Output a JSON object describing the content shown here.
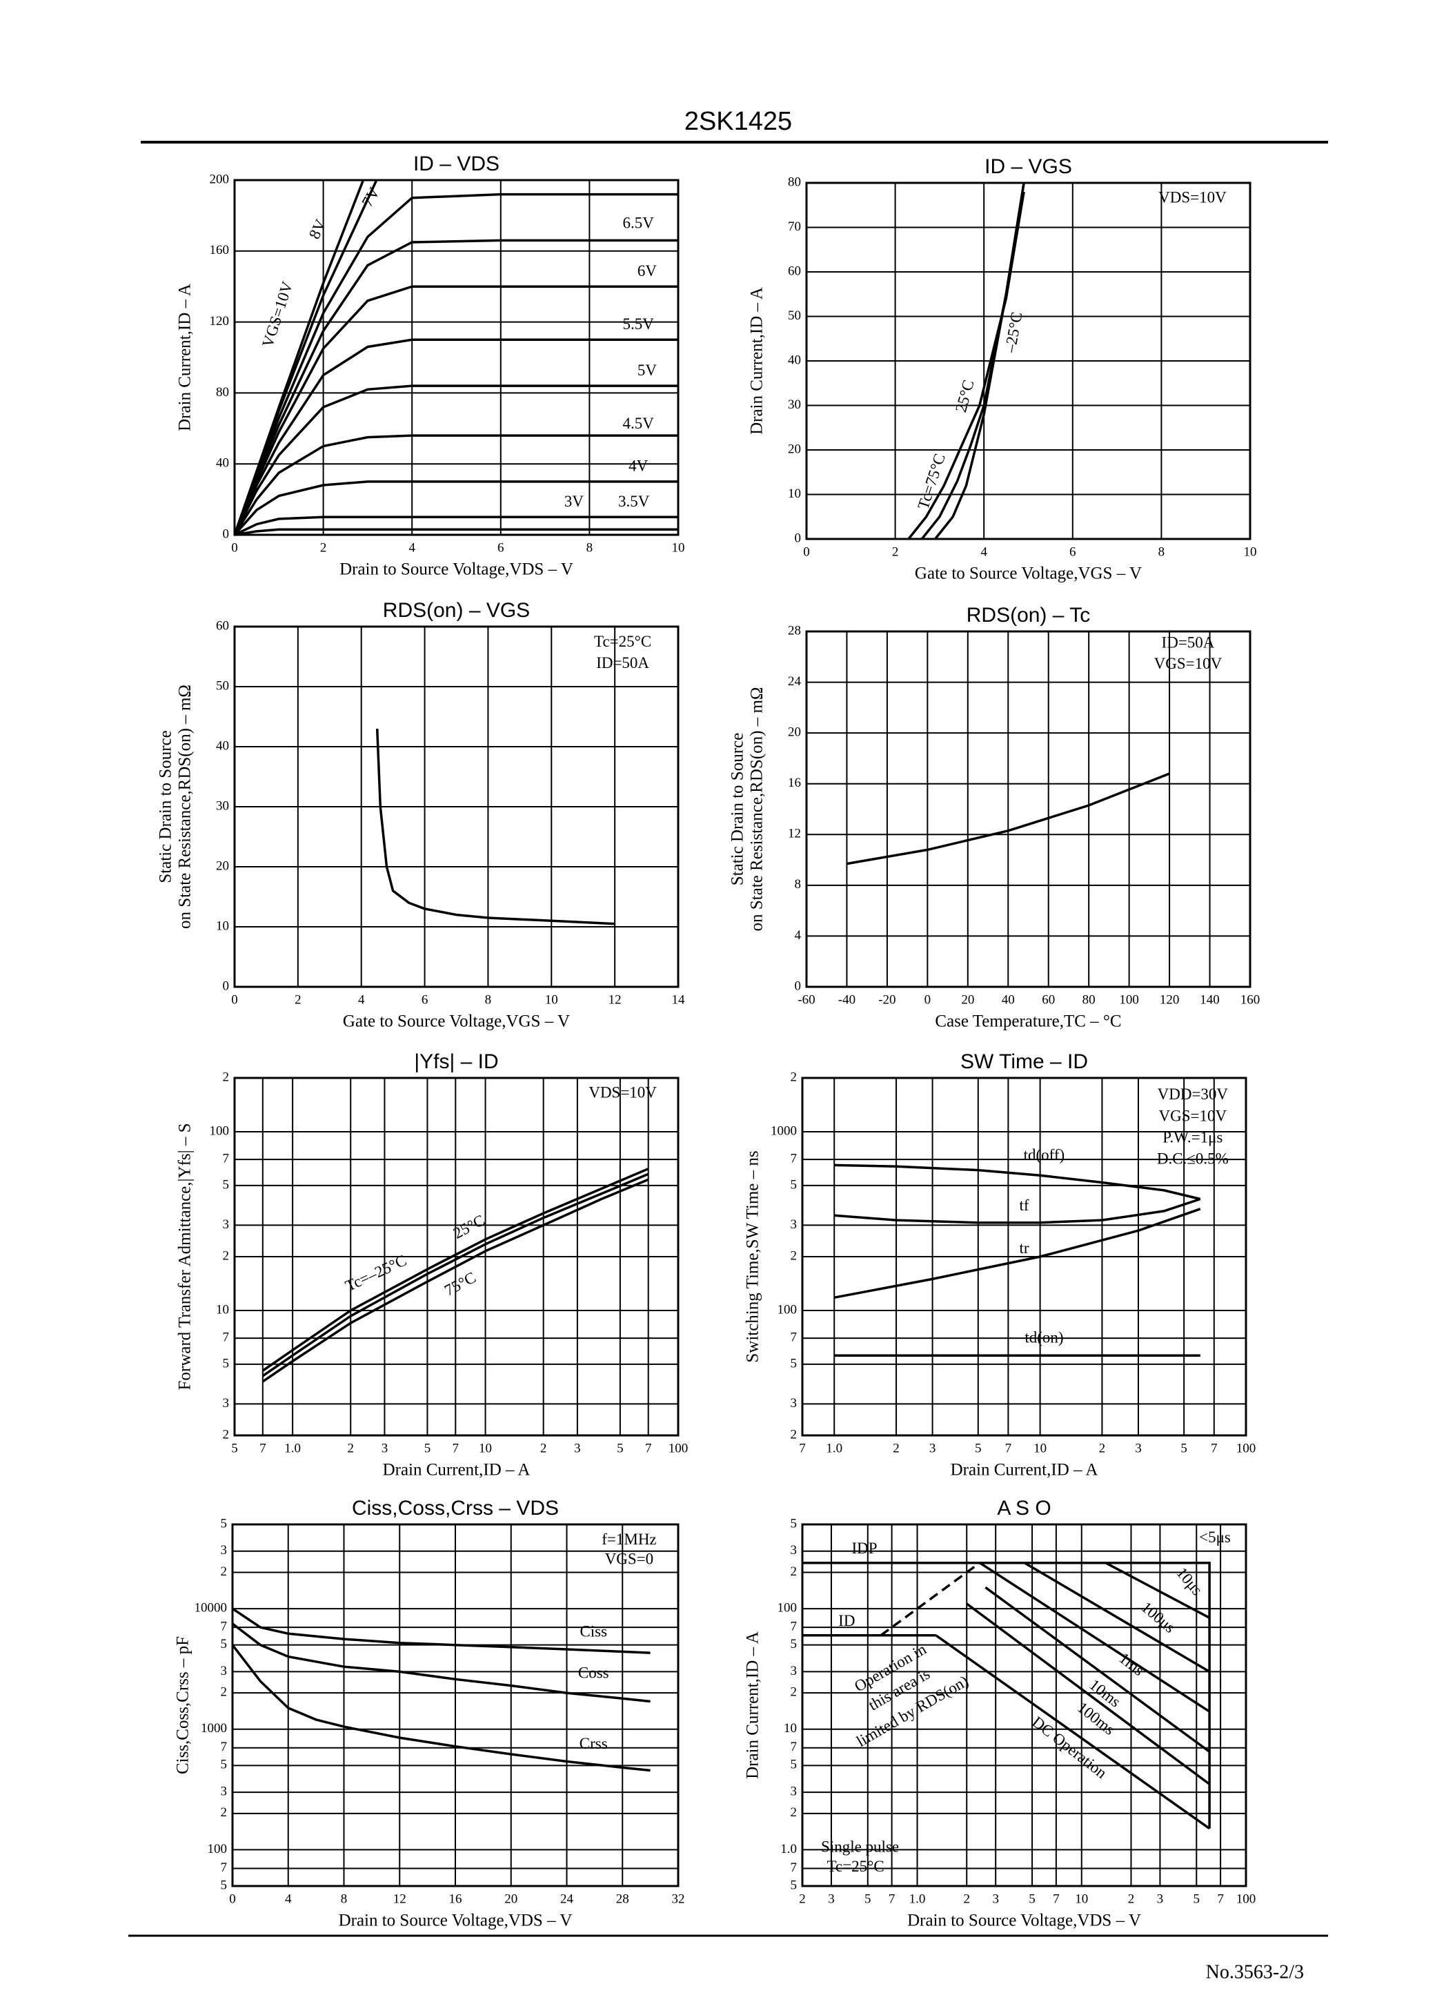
{
  "header": {
    "title": "2SK1425"
  },
  "footer": {
    "page": "No.3563-2/3"
  },
  "chart_data": [
    {
      "type": "line",
      "title": "ID – VDS",
      "xlabel": "Drain to Source Voltage,VDS – V",
      "ylabel": "Drain Current,ID – A",
      "xlim": [
        0,
        10
      ],
      "xticks": [
        0,
        2,
        4,
        6,
        8,
        10
      ],
      "ylim": [
        0,
        200
      ],
      "yticks": [
        0,
        40,
        80,
        120,
        160,
        200
      ],
      "grid": true,
      "color": "#000000",
      "series": [
        {
          "name": "3V",
          "x": [
            0,
            0.5,
            1,
            2,
            3,
            4,
            6,
            10
          ],
          "values": [
            0,
            2,
            3,
            3,
            3,
            3,
            3,
            3
          ]
        },
        {
          "name": "3.5V",
          "x": [
            0,
            0.5,
            1,
            2,
            3,
            4,
            6,
            10
          ],
          "values": [
            0,
            6,
            9,
            10,
            10,
            10,
            10,
            10
          ]
        },
        {
          "name": "4V",
          "x": [
            0,
            0.5,
            1,
            2,
            3,
            4,
            6,
            10
          ],
          "values": [
            0,
            14,
            22,
            28,
            30,
            30,
            30,
            30
          ]
        },
        {
          "name": "4.5V",
          "x": [
            0,
            0.5,
            1,
            2,
            3,
            4,
            6,
            10
          ],
          "values": [
            0,
            20,
            35,
            50,
            55,
            56,
            56,
            56
          ]
        },
        {
          "name": "5V",
          "x": [
            0,
            0.5,
            1,
            2,
            3,
            4,
            6,
            10
          ],
          "values": [
            0,
            25,
            45,
            72,
            82,
            84,
            84,
            84
          ]
        },
        {
          "name": "5.5V",
          "x": [
            0,
            0.5,
            1,
            2,
            3,
            4,
            6,
            10
          ],
          "values": [
            0,
            28,
            52,
            90,
            106,
            110,
            110,
            110
          ]
        },
        {
          "name": "6V",
          "x": [
            0,
            0.5,
            1,
            2,
            3,
            4,
            6,
            10
          ],
          "values": [
            0,
            30,
            58,
            105,
            132,
            140,
            140,
            140
          ]
        },
        {
          "name": "6.5V",
          "x": [
            0,
            0.5,
            1,
            2,
            3,
            4,
            6,
            10
          ],
          "values": [
            0,
            32,
            62,
            115,
            152,
            165,
            166,
            166
          ]
        },
        {
          "name": "7V",
          "x": [
            0,
            0.5,
            1,
            2,
            3,
            4,
            6,
            10
          ],
          "values": [
            0,
            33,
            66,
            125,
            168,
            190,
            192,
            192
          ]
        },
        {
          "name": "8V",
          "x": [
            0,
            1,
            2,
            3.2
          ],
          "values": [
            0,
            70,
            135,
            200
          ]
        },
        {
          "name": "VGS=10V",
          "x": [
            0,
            1,
            2,
            2.9
          ],
          "values": [
            0,
            72,
            142,
            200
          ]
        }
      ]
    },
    {
      "type": "line",
      "title": "ID – VGS",
      "xlabel": "Gate to Source Voltage,VGS – V",
      "ylabel": "Drain Current,ID – A",
      "xlim": [
        0,
        10
      ],
      "xticks": [
        0,
        2,
        4,
        6,
        8,
        10
      ],
      "ylim": [
        0,
        80
      ],
      "yticks": [
        0,
        10,
        20,
        30,
        40,
        50,
        60,
        70,
        80
      ],
      "grid": true,
      "color": "#000000",
      "annotations": [
        "VDS=10V"
      ],
      "series": [
        {
          "name": "Tc=75°C",
          "x": [
            2.3,
            2.7,
            3.1,
            3.5,
            3.9,
            4.5,
            4.9
          ],
          "values": [
            0,
            5,
            12,
            21,
            30,
            54,
            78
          ]
        },
        {
          "name": "25°C",
          "x": [
            2.6,
            3.0,
            3.4,
            3.7,
            4.0,
            4.5,
            4.9
          ],
          "values": [
            0,
            5,
            13,
            21,
            30,
            55,
            80
          ]
        },
        {
          "name": "–25°C",
          "x": [
            2.9,
            3.3,
            3.6,
            3.8,
            4.0,
            4.5,
            4.9
          ],
          "values": [
            0,
            5,
            12,
            20,
            28,
            55,
            80
          ]
        }
      ]
    },
    {
      "type": "line",
      "title": "RDS(on) – VGS",
      "xlabel": "Gate to Source Voltage,VGS – V",
      "ylabel": [
        "Static Drain to Source",
        "on State Resistance,RDS(on) – mΩ"
      ],
      "xlim": [
        0,
        14
      ],
      "xticks": [
        0,
        2,
        4,
        6,
        8,
        10,
        12,
        14
      ],
      "ylim": [
        0,
        60
      ],
      "yticks": [
        0,
        10,
        20,
        30,
        40,
        50,
        60
      ],
      "grid": true,
      "color": "#000000",
      "annotations": [
        "Tc=25°C",
        "ID=50A"
      ],
      "series": [
        {
          "x": [
            4.5,
            4.6,
            4.8,
            5,
            5.5,
            6,
            7,
            8,
            10,
            12
          ],
          "values": [
            43,
            30,
            20,
            16,
            14,
            13,
            12,
            11.5,
            11,
            10.5
          ]
        }
      ]
    },
    {
      "type": "line",
      "title": "RDS(on) – Tc",
      "xlabel": "Case Temperature,TC – °C",
      "ylabel": [
        "Static Drain to Source",
        "on State Resistance,RDS(on) – mΩ"
      ],
      "xlim": [
        -60,
        160
      ],
      "xticks": [
        -60,
        -40,
        -20,
        0,
        20,
        40,
        60,
        80,
        100,
        120,
        140,
        160
      ],
      "ylim": [
        0,
        28
      ],
      "yticks": [
        0,
        4,
        8,
        12,
        16,
        20,
        24,
        28
      ],
      "grid": true,
      "color": "#000000",
      "annotations": [
        "ID=50A",
        "VGS=10V"
      ],
      "series": [
        {
          "x": [
            -40,
            0,
            40,
            80,
            120
          ],
          "values": [
            9.7,
            10.8,
            12.3,
            14.3,
            16.8
          ]
        }
      ]
    },
    {
      "type": "line",
      "title": "|Yfs| – ID",
      "xlabel": "Drain Current,ID – A",
      "ylabel": "Forward Transfer Admittance,|Yfs| – S",
      "xscale": "log",
      "yscale": "log",
      "xlim": [
        0.5,
        100
      ],
      "xticks": [
        {
          "value": 0.5,
          "label": "5"
        },
        {
          "value": 0.7,
          "label": "7"
        },
        {
          "value": 1,
          "label": "1.0"
        },
        2,
        3,
        5,
        7,
        10,
        {
          "value": 20,
          "label": "2"
        },
        {
          "value": 30,
          "label": "3"
        },
        {
          "value": 50,
          "label": "5"
        },
        {
          "value": 70,
          "label": "7"
        },
        100
      ],
      "ylim": [
        2,
        200
      ],
      "yticks": [
        2,
        3,
        5,
        7,
        10,
        {
          "value": 20,
          "label": "2"
        },
        {
          "value": 30,
          "label": "3"
        },
        {
          "value": 50,
          "label": "5"
        },
        {
          "value": 70,
          "label": "7"
        },
        100,
        {
          "value": 200,
          "label": "2"
        }
      ],
      "grid": true,
      "color": "#000000",
      "annotations": [
        "VDS=10V"
      ],
      "series": [
        {
          "name": "Tc=–25°C",
          "x": [
            0.7,
            1,
            2,
            5,
            10,
            20,
            40,
            70
          ],
          "values": [
            4.6,
            6,
            10,
            17,
            25,
            35,
            48,
            62
          ]
        },
        {
          "name": "25°C",
          "x": [
            0.7,
            1,
            2,
            5,
            10,
            20,
            40,
            70
          ],
          "values": [
            4.3,
            5.6,
            9.3,
            16,
            23.5,
            33,
            45,
            58
          ]
        },
        {
          "name": "75°C",
          "x": [
            0.7,
            1,
            2,
            5,
            10,
            20,
            40,
            70
          ],
          "values": [
            4,
            5.2,
            8.5,
            14.5,
            21.5,
            30,
            42,
            54
          ]
        }
      ]
    },
    {
      "type": "line",
      "title": "SW Time – ID",
      "xlabel": "Drain Current,ID – A",
      "ylabel": "Switching Time,SW Time – ns",
      "xscale": "log",
      "yscale": "log",
      "xlim": [
        0.7,
        100
      ],
      "xticks": [
        {
          "value": 0.7,
          "label": "7"
        },
        {
          "value": 1,
          "label": "1.0"
        },
        2,
        3,
        5,
        7,
        10,
        {
          "value": 20,
          "label": "2"
        },
        {
          "value": 30,
          "label": "3"
        },
        {
          "value": 50,
          "label": "5"
        },
        {
          "value": 70,
          "label": "7"
        },
        100
      ],
      "ylim": [
        20,
        2000
      ],
      "yticks": [
        {
          "value": 20,
          "label": "2"
        },
        {
          "value": 30,
          "label": "3"
        },
        {
          "value": 50,
          "label": "5"
        },
        {
          "value": 70,
          "label": "7"
        },
        100,
        {
          "value": 200,
          "label": "2"
        },
        {
          "value": 300,
          "label": "3"
        },
        {
          "value": 500,
          "label": "5"
        },
        {
          "value": 700,
          "label": "7"
        },
        1000,
        {
          "value": 2000,
          "label": "2"
        }
      ],
      "grid": true,
      "color": "#000000",
      "annotations": [
        "VDD=30V",
        "VGS=10V",
        "P.W.=1μs",
        "D.C.≤0.5%"
      ],
      "series": [
        {
          "name": "td(off)",
          "x": [
            1,
            2,
            5,
            10,
            20,
            40,
            60
          ],
          "values": [
            650,
            640,
            610,
            570,
            520,
            470,
            420
          ]
        },
        {
          "name": "tf",
          "x": [
            1,
            2,
            5,
            10,
            20,
            40,
            60
          ],
          "values": [
            340,
            320,
            310,
            310,
            320,
            360,
            420
          ]
        },
        {
          "name": "tr",
          "x": [
            1,
            3,
            10,
            30,
            60
          ],
          "values": [
            118,
            150,
            200,
            280,
            370
          ]
        },
        {
          "name": "td(on)",
          "x": [
            1,
            60
          ],
          "values": [
            56,
            56
          ]
        }
      ]
    },
    {
      "type": "line",
      "title": "Ciss,Coss,Crss – VDS",
      "xlabel": "Drain to Source Voltage,VDS – V",
      "ylabel": "Ciss,Coss,Crss – pF",
      "yscale": "log",
      "xlim": [
        0,
        32
      ],
      "xticks": [
        0,
        4,
        8,
        12,
        16,
        20,
        24,
        28,
        32
      ],
      "ylim": [
        50,
        50000
      ],
      "yticks": [
        {
          "value": 50,
          "label": "5"
        },
        {
          "value": 70,
          "label": "7"
        },
        100,
        {
          "value": 200,
          "label": "2"
        },
        {
          "value": 300,
          "label": "3"
        },
        {
          "value": 500,
          "label": "5"
        },
        {
          "value": 700,
          "label": "7"
        },
        1000,
        {
          "value": 2000,
          "label": "2"
        },
        {
          "value": 3000,
          "label": "3"
        },
        {
          "value": 5000,
          "label": "5"
        },
        {
          "value": 7000,
          "label": "7"
        },
        10000,
        {
          "value": 20000,
          "label": "2"
        },
        {
          "value": 30000,
          "label": "3"
        },
        {
          "value": 50000,
          "label": "5"
        }
      ],
      "grid": true,
      "color": "#000000",
      "annotations": [
        "f=1MHz",
        "VGS=0"
      ],
      "series": [
        {
          "name": "Ciss",
          "x": [
            0,
            2,
            4,
            8,
            12,
            16,
            20,
            24,
            28,
            30
          ],
          "values": [
            10000,
            7000,
            6200,
            5600,
            5200,
            5000,
            4800,
            4600,
            4400,
            4300
          ]
        },
        {
          "name": "Coss",
          "x": [
            0,
            2,
            4,
            8,
            12,
            16,
            20,
            24,
            28,
            30
          ],
          "values": [
            7500,
            5000,
            4000,
            3300,
            3000,
            2600,
            2300,
            2000,
            1800,
            1700
          ]
        },
        {
          "name": "Crss",
          "x": [
            0,
            2,
            4,
            6,
            8,
            12,
            16,
            20,
            24,
            28,
            30
          ],
          "values": [
            5000,
            2500,
            1500,
            1200,
            1050,
            850,
            720,
            620,
            540,
            480,
            455
          ]
        }
      ]
    },
    {
      "type": "line",
      "title": "A S O",
      "xlabel": "Drain to Source Voltage,VDS – V",
      "ylabel": "Drain Current,ID – A",
      "xscale": "log",
      "yscale": "log",
      "xlim": [
        0.2,
        100
      ],
      "xticks": [
        {
          "value": 0.2,
          "label": "2"
        },
        {
          "value": 0.3,
          "label": "3"
        },
        {
          "value": 0.5,
          "label": "5"
        },
        {
          "value": 0.7,
          "label": "7"
        },
        {
          "value": 1,
          "label": "1.0"
        },
        2,
        3,
        5,
        7,
        10,
        {
          "value": 20,
          "label": "2"
        },
        {
          "value": 30,
          "label": "3"
        },
        {
          "value": 50,
          "label": "5"
        },
        {
          "value": 70,
          "label": "7"
        },
        100
      ],
      "ylim": [
        0.5,
        500
      ],
      "yticks": [
        {
          "value": 0.5,
          "label": "5"
        },
        {
          "value": 0.7,
          "label": "7"
        },
        {
          "value": 1,
          "label": "1.0"
        },
        2,
        3,
        5,
        7,
        10,
        {
          "value": 20,
          "label": "2"
        },
        {
          "value": 30,
          "label": "3"
        },
        {
          "value": 50,
          "label": "5"
        },
        {
          "value": 70,
          "label": "7"
        },
        100,
        {
          "value": 200,
          "label": "2"
        },
        {
          "value": 300,
          "label": "3"
        },
        {
          "value": 500,
          "label": "5"
        }
      ],
      "grid": true,
      "color": "#000000",
      "annotations": [
        "<5μs",
        "Operation in",
        "this area is",
        "limited by RDS(on)",
        "Single pulse",
        "Tc=25°C"
      ],
      "series": [
        {
          "name": "IDP",
          "x": [
            0.2,
            60,
            60
          ],
          "values": [
            240,
            240,
            1.5
          ]
        },
        {
          "name": "ID",
          "x": [
            0.2,
            1.3
          ],
          "values": [
            60,
            60
          ]
        },
        {
          "x": [
            0.6,
            2.4
          ],
          "values": [
            60,
            240
          ],
          "dash": true
        },
        {
          "name": "10μs",
          "x": [
            14,
            60
          ],
          "values": [
            240,
            84
          ]
        },
        {
          "name": "100μs",
          "x": [
            4.5,
            60
          ],
          "values": [
            240,
            30
          ]
        },
        {
          "name": "1ms",
          "x": [
            2.4,
            60
          ],
          "values": [
            240,
            14
          ]
        },
        {
          "name": "10ms",
          "x": [
            2.6,
            60
          ],
          "values": [
            150,
            6.5
          ]
        },
        {
          "name": "100ms",
          "x": [
            2,
            60
          ],
          "values": [
            110,
            3.5
          ]
        },
        {
          "name": "DC Operation",
          "x": [
            1.3,
            60
          ],
          "values": [
            60,
            1.5
          ]
        }
      ]
    }
  ]
}
